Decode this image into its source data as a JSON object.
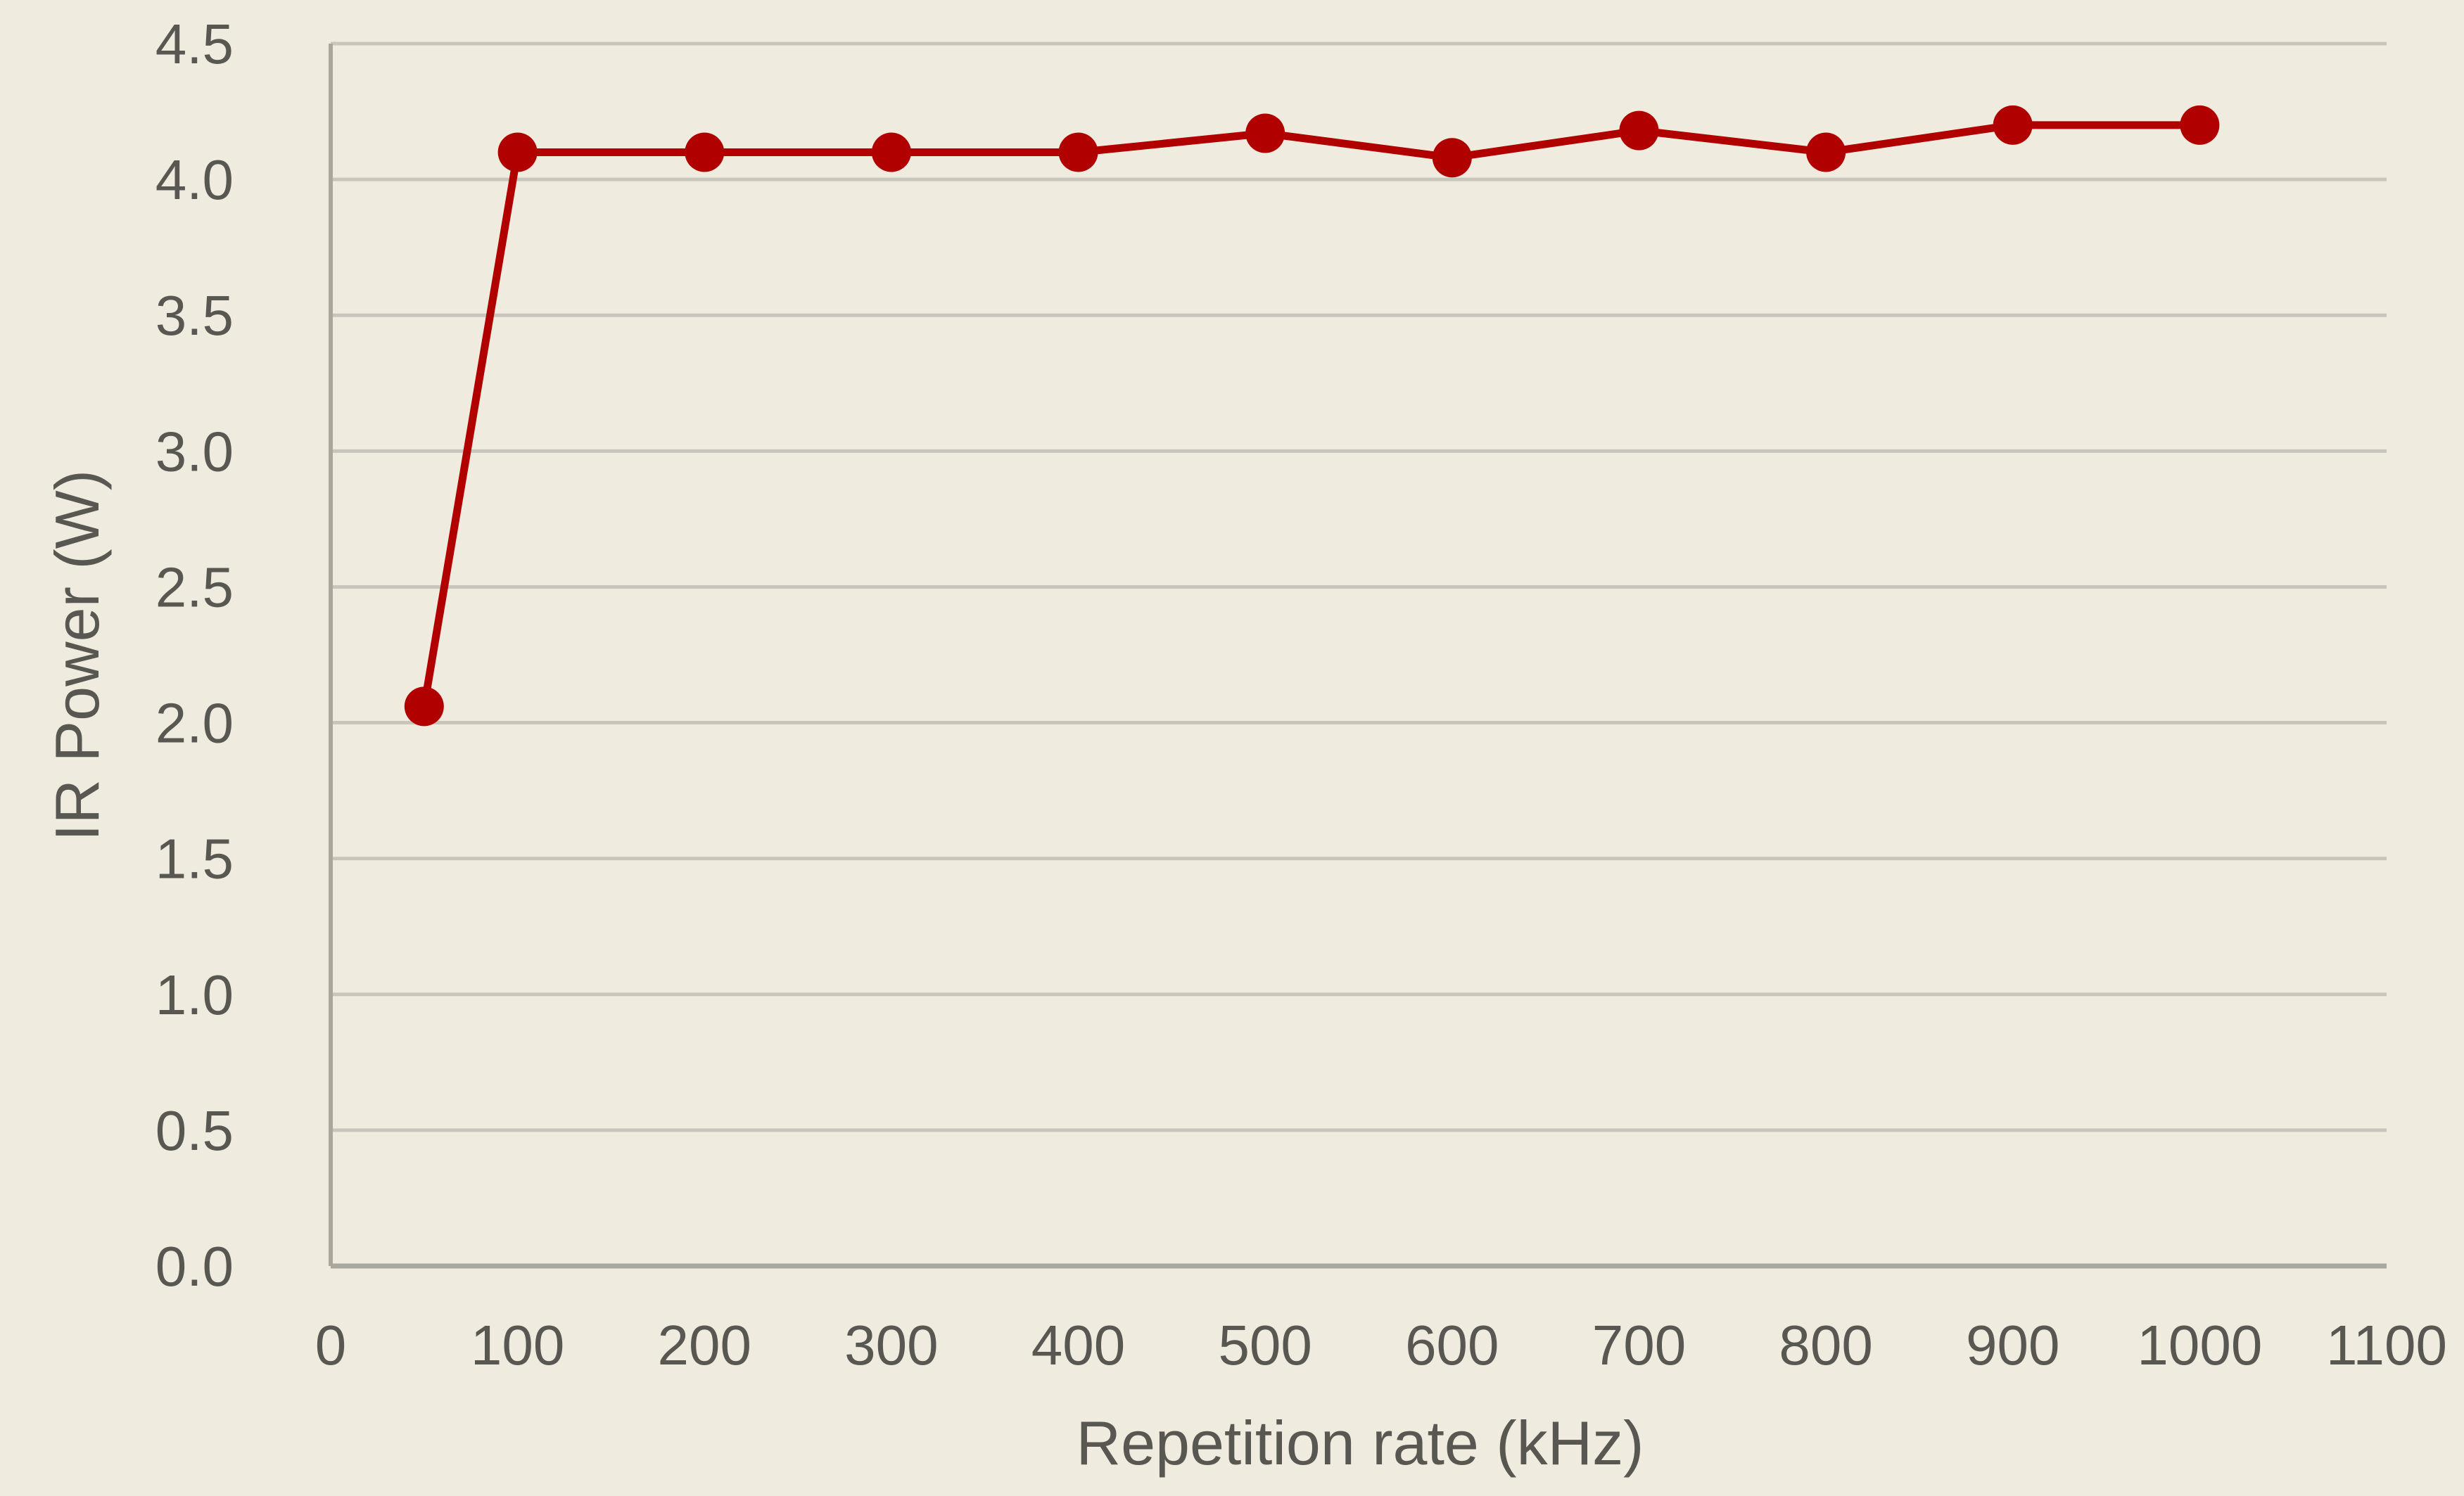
{
  "colors": {
    "background": "#efebdf",
    "gridline": "#c8c6bc",
    "axis": "#aaa89e",
    "text": "#595752",
    "series": "#b00000"
  },
  "chart_data": {
    "type": "line",
    "title": "",
    "xlabel": "Repetition rate (kHz)",
    "ylabel": "IR Power (W)",
    "xlim": [
      0,
      1100
    ],
    "ylim": [
      0,
      4.5
    ],
    "xticks": [
      0,
      100,
      200,
      300,
      400,
      500,
      600,
      700,
      800,
      900,
      1000,
      1100
    ],
    "xtick_labels": [
      "0",
      "100",
      "200",
      "300",
      "400",
      "500",
      "600",
      "700",
      "800",
      "900",
      "1000",
      "1100"
    ],
    "yticks": [
      0,
      0.5,
      1,
      1.5,
      2,
      2.5,
      3,
      3.5,
      4,
      4.5
    ],
    "ytick_labels": [
      "0.0",
      "0.5",
      "1.0",
      "1.5",
      "2.0",
      "2.5",
      "3.0",
      "3.5",
      "4.0",
      "4.5"
    ],
    "grid": "horizontal",
    "legend": "none",
    "series": [
      {
        "x": [
          50,
          100,
          200,
          300,
          400,
          500,
          600,
          700,
          800,
          900,
          1000
        ],
        "y": [
          2.06,
          4.1,
          4.1,
          4.1,
          4.1,
          4.17,
          4.08,
          4.18,
          4.1,
          4.2,
          4.2
        ]
      }
    ]
  }
}
